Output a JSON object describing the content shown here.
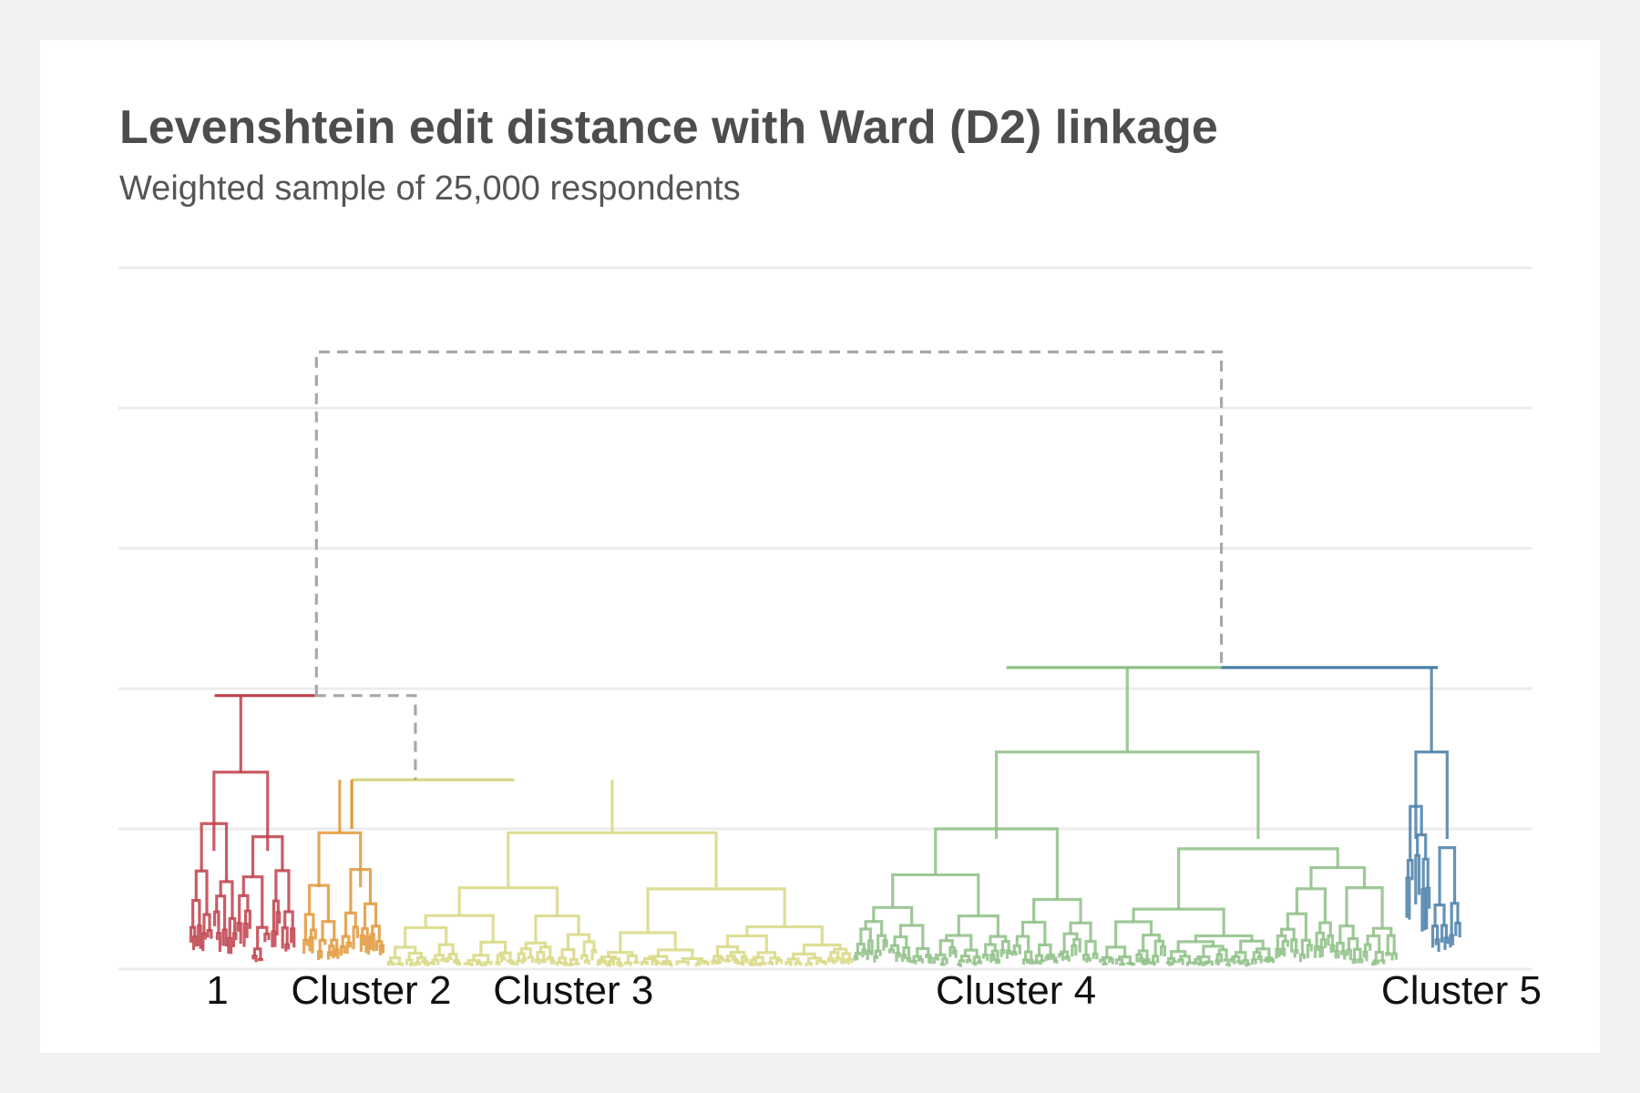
{
  "chart_data": {
    "type": "dendrogram",
    "title": "Levenshtein edit distance with Ward (D2) linkage",
    "subtitle": "Weighted sample of 25,000 respondents",
    "xlabel": "",
    "ylabel": "",
    "grid": true,
    "legend": "none",
    "y_gridlines": 6,
    "cluster_labels": [
      "1",
      "Cluster 2",
      "Cluster 3",
      "Cluster 4",
      "Cluster 5"
    ],
    "clusters": [
      {
        "label": "1",
        "color": "#c0404a",
        "leaf_span": [
          0.05,
          0.125
        ],
        "root_height": 0.39,
        "root_x": 0.068
      },
      {
        "label": "Cluster 2",
        "color": "#e0983a",
        "leaf_span": [
          0.13,
          0.188
        ],
        "root_height": 0.27,
        "root_x": 0.165
      },
      {
        "label": "Cluster 3",
        "color": "#d8d884",
        "leaf_span": [
          0.19,
          0.52
        ],
        "root_height": 0.27,
        "root_x": 0.39
      },
      {
        "label": "Cluster 4",
        "color": "#8ebf86",
        "leaf_span": [
          0.52,
          0.905
        ],
        "root_height": 0.43,
        "root_x": 0.628
      },
      {
        "label": "Cluster 5",
        "color": "#4a7fa8",
        "leaf_span": [
          0.91,
          0.95
        ],
        "root_height": 0.43,
        "root_x": 0.933
      }
    ],
    "merges": [
      {
        "join": [
          "Cluster 2",
          "Cluster 3"
        ],
        "height": 0.27,
        "x_left": 0.165,
        "x_right": 0.28,
        "color": "#d8d884"
      },
      {
        "join": [
          "1",
          "Cluster 2 + Cluster 3"
        ],
        "height": 0.39,
        "x_left": 0.068,
        "x_right": 0.21,
        "color": "#c0404a",
        "dashed_color": "#a8a8a8"
      },
      {
        "join": [
          "Cluster 4",
          "Cluster 5"
        ],
        "height": 0.43,
        "x_left": 0.628,
        "x_right": 0.933,
        "color": "#8ebf86"
      },
      {
        "join": [
          "Clusters 1-3",
          "Clusters 4-5"
        ],
        "height": 0.88,
        "x_left": 0.14,
        "x_right": 0.78,
        "dashed": true,
        "color": "#a8a8a8"
      }
    ]
  }
}
